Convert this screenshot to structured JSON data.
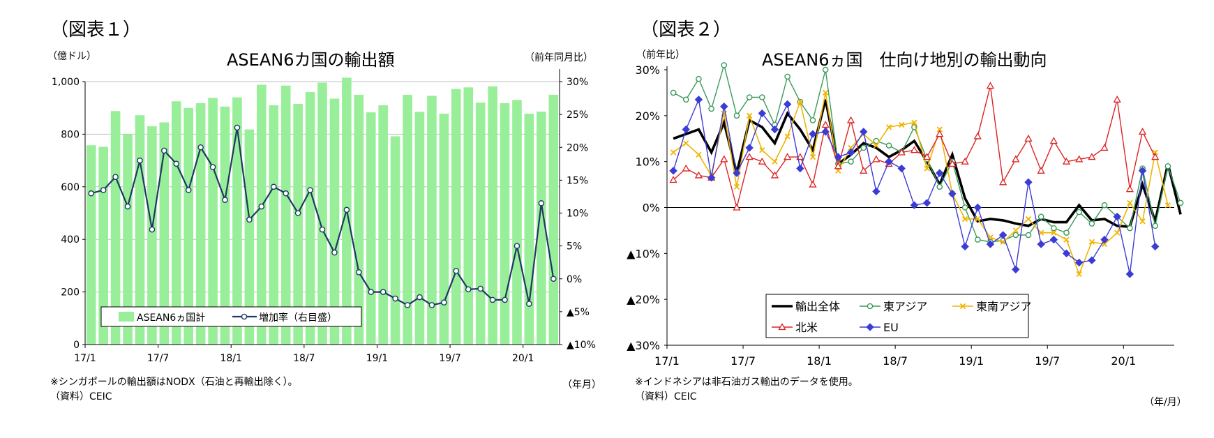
{
  "figure1": {
    "label": "（図表１）",
    "title": "ASEAN6カ国の輸出額",
    "y_left_unit": "（億ドル）",
    "y_right_unit": "（前年同月比）",
    "x_unit": "（年月）",
    "note": "※シンガポールの輸出額はNODX（石油と再輸出除く）。",
    "source": "（資料）CEIC",
    "legend": {
      "bar": "ASEAN6ヵ国計",
      "line": "増加率（右目盛）"
    }
  },
  "figure2": {
    "label": "（図表２）",
    "title": "ASEAN6ヵ国　仕向け地別の輸出動向",
    "y_unit": "（前年比）",
    "x_unit": "（年/月）",
    "note": "※インドネシアは非石油ガス輸出のデータを使用。",
    "source": "（資料）CEIC"
  },
  "chart_data": [
    {
      "type": "bar",
      "title": "ASEAN6カ国の輸出額",
      "x_ticks": [
        "17/1",
        "17/7",
        "18/1",
        "18/7",
        "19/1",
        "19/7",
        "20/1"
      ],
      "x_tick_index": [
        0,
        6,
        12,
        18,
        24,
        30,
        36
      ],
      "y_left": {
        "ylim": [
          0,
          1000
        ],
        "ticks": [
          0,
          200,
          400,
          600,
          800,
          1000
        ],
        "tick_labels": [
          "0",
          "200",
          "400",
          "600",
          "800",
          "1,000"
        ]
      },
      "y_right": {
        "ylim": [
          -10,
          30
        ],
        "ticks": [
          -10,
          -5,
          0,
          5,
          10,
          15,
          20,
          25,
          30
        ],
        "tick_labels": [
          "▲10%",
          "▲5%",
          "0%",
          "5%",
          "10%",
          "15%",
          "20%",
          "25%",
          "30%"
        ]
      },
      "grid": true,
      "legend_position": "bottom-left",
      "series": [
        {
          "name": "ASEAN6ヵ国計",
          "kind": "bar",
          "axis": "left",
          "color": "#99ee99",
          "values": [
            758,
            752,
            888,
            800,
            872,
            830,
            845,
            925,
            900,
            918,
            938,
            905,
            940,
            818,
            988,
            910,
            985,
            915,
            960,
            996,
            935,
            1015,
            950,
            883,
            910,
            792,
            950,
            885,
            946,
            878,
            972,
            978,
            920,
            982,
            918,
            930,
            878,
            886,
            950
          ]
        },
        {
          "name": "増加率（右目盛）",
          "kind": "line",
          "axis": "right",
          "color": "#1f3864",
          "values": [
            13.0,
            13.5,
            15.5,
            11.0,
            18.0,
            7.5,
            19.5,
            17.5,
            13.5,
            20.0,
            17.0,
            12.0,
            23.0,
            9.0,
            11.0,
            14.0,
            13.0,
            10.0,
            13.5,
            7.5,
            4.0,
            10.5,
            1.0,
            -2.0,
            -2.0,
            -3.0,
            -4.0,
            -2.8,
            -4.0,
            -3.6,
            1.2,
            -1.6,
            -1.5,
            -3.2,
            -3.2,
            5.0,
            -3.8,
            11.5,
            0.0
          ]
        }
      ]
    },
    {
      "type": "line",
      "title": "ASEAN6ヵ国　仕向け地別の輸出動向",
      "x_ticks": [
        "17/1",
        "17/7",
        "18/1",
        "18/7",
        "19/1",
        "19/7",
        "20/1"
      ],
      "x_tick_index": [
        0,
        6,
        12,
        18,
        24,
        30,
        36
      ],
      "ylim": [
        -30,
        30
      ],
      "y_ticks": [
        -30,
        -20,
        -10,
        0,
        10,
        20,
        30
      ],
      "y_tick_labels": [
        "▲30%",
        "▲20%",
        "▲10%",
        "0%",
        "10%",
        "20%",
        "30%"
      ],
      "legend_position": "bottom-left",
      "series": [
        {
          "name": "輸出全体",
          "color": "#000000",
          "values": [
            15,
            16,
            17,
            12,
            18.5,
            7.5,
            19,
            17.5,
            14,
            20.5,
            17,
            12.5,
            23.5,
            9.5,
            11.5,
            14,
            13,
            11,
            12.5,
            14.5,
            10,
            5,
            11.5,
            2,
            -3,
            -2.5,
            -2.8,
            -3.5,
            -4,
            -2.5,
            -3.2,
            -3.2,
            0.5,
            -2.8,
            -2.5,
            -4,
            -4.2,
            5,
            -3,
            9.5,
            -1.5
          ]
        },
        {
          "name": "東アジア",
          "color": "#3a9a5a",
          "values": [
            25,
            23.5,
            28,
            21.5,
            31,
            20,
            24,
            24,
            18,
            28.5,
            23,
            19,
            30,
            9.5,
            10,
            13,
            14.5,
            13.5,
            12,
            17.5,
            10.5,
            4.5,
            10,
            0,
            -7,
            -7.5,
            -7.2,
            -6,
            -6,
            -2,
            -4.5,
            -5.5,
            -1,
            -3.5,
            0.5,
            -2,
            -4.5,
            8.5,
            -4,
            9,
            1
          ]
        },
        {
          "name": "東南アジア",
          "color": "#f0b400",
          "values": [
            12,
            14,
            11.5,
            7,
            20.5,
            4.5,
            20,
            12.5,
            10,
            15.5,
            23,
            11,
            25,
            8,
            13,
            16,
            13.5,
            17.5,
            18,
            18.5,
            8.5,
            17,
            3,
            -2.5,
            -2.5,
            -6.5,
            -7.5,
            -5,
            -2.5,
            -5.5,
            -5.5,
            -7,
            -14.5,
            -7.5,
            -8,
            -5.5,
            1,
            -3,
            12,
            0.5
          ]
        },
        {
          "name": "北米",
          "color": "#dd2222",
          "values": [
            6,
            8.5,
            7,
            6.5,
            10.5,
            0,
            11,
            10,
            7,
            11,
            11,
            5,
            18,
            9,
            19,
            8,
            10.5,
            9.5,
            12,
            12.5,
            11,
            16,
            9.5,
            10,
            15.5,
            26.5,
            5.5,
            10.5,
            15,
            8,
            14.5,
            10,
            10.5,
            11,
            13,
            23.5,
            4,
            16.5,
            11
          ]
        },
        {
          "name": "EU",
          "color": "#3b3bd6",
          "values": [
            8,
            17,
            23.5,
            6.5,
            22,
            7.5,
            13,
            20.5,
            17,
            22.5,
            8.5,
            16,
            16.5,
            11,
            12,
            16.5,
            3.5,
            10,
            8.5,
            0.5,
            1,
            7.5,
            3,
            -8.5,
            0,
            -8,
            -6,
            -13.5,
            5.5,
            -8,
            -7,
            -10,
            -12,
            -11.5,
            -7,
            -2,
            -14.5,
            8,
            -8.5
          ]
        }
      ]
    }
  ]
}
